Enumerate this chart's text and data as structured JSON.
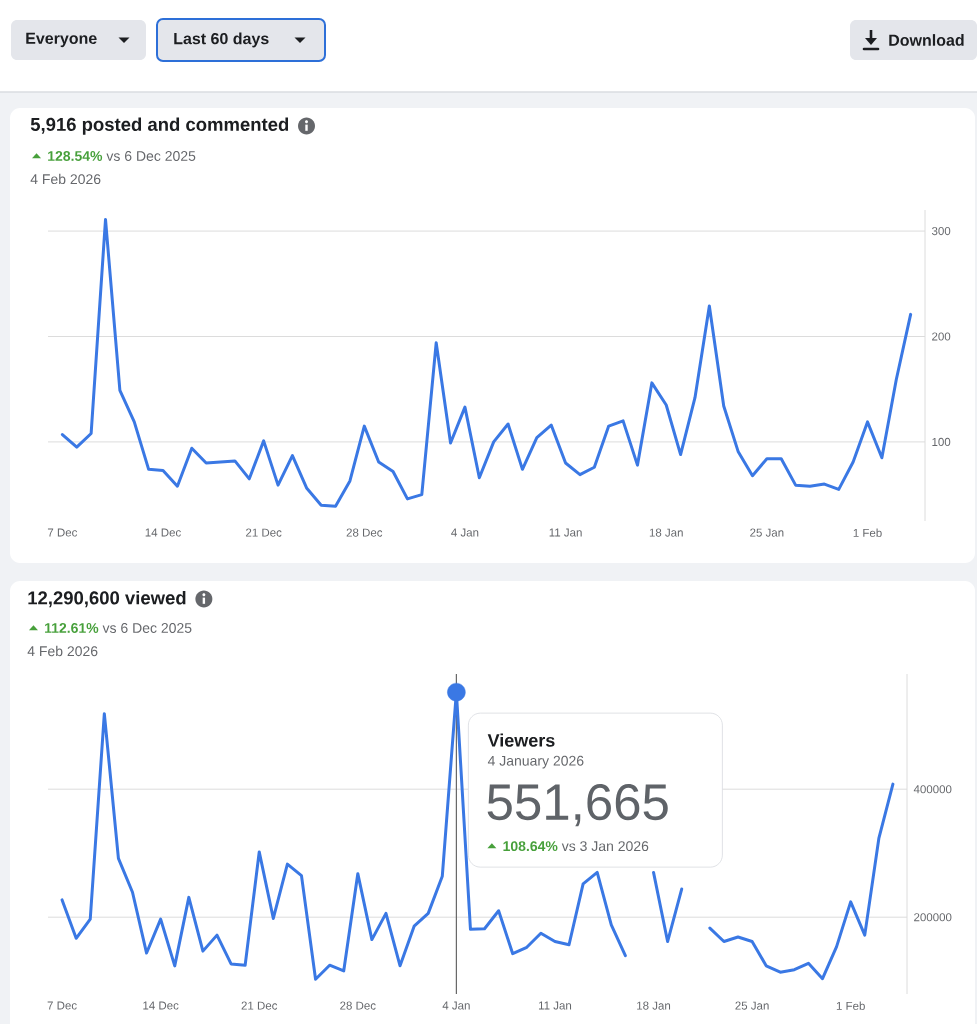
{
  "chart_data": [
    {
      "type": "other",
      "annotations": [
        "Everyone",
        "Last 60 days",
        "Download"
      ]
    },
    {
      "type": "line",
      "title": "5,916 posted and commented",
      "subtitle": "**128.54%** vs 6 Dec 2025",
      "annotations": [
        "4 Feb 2026"
      ],
      "x": [
        "2025-12-07",
        "2025-12-08",
        "2025-12-09",
        "2025-12-10",
        "2025-12-11",
        "2025-12-12",
        "2025-12-13",
        "2025-12-14",
        "2025-12-15",
        "2025-12-16",
        "2025-12-17",
        "2025-12-18",
        "2025-12-19",
        "2025-12-20",
        "2025-12-21",
        "2025-12-22",
        "2025-12-23",
        "2025-12-24",
        "2025-12-25",
        "2025-12-26",
        "2025-12-27",
        "2025-12-28",
        "2025-12-29",
        "2025-12-30",
        "2025-12-31",
        "2026-01-01",
        "2026-01-02",
        "2026-01-03",
        "2026-01-04",
        "2026-01-05",
        "2026-01-06",
        "2026-01-07",
        "2026-01-08",
        "2026-01-09",
        "2026-01-10",
        "2026-01-11",
        "2026-01-12",
        "2026-01-13",
        "2026-01-14",
        "2026-01-15",
        "2026-01-16",
        "2026-01-17",
        "2026-01-18",
        "2026-01-19",
        "2026-01-20",
        "2026-01-21",
        "2026-01-22",
        "2026-01-23",
        "2026-01-24",
        "2026-01-25",
        "2026-01-26",
        "2026-01-27",
        "2026-01-28",
        "2026-01-29",
        "2026-01-30",
        "2026-01-31",
        "2026-02-01",
        "2026-02-02",
        "2026-02-03",
        "2026-02-04"
      ],
      "series": [
        {
          "color": "#3a78e4",
          "values": [
            107,
            95,
            108,
            311,
            149,
            119,
            74,
            73,
            58,
            94,
            80,
            81,
            82,
            65,
            101,
            59,
            87,
            56,
            40,
            39,
            63,
            115,
            81,
            72,
            46,
            50,
            194,
            99,
            133,
            66,
            100,
            117,
            74,
            104,
            116,
            80,
            69,
            76,
            115,
            120,
            78,
            156,
            135,
            88,
            142,
            229,
            134,
            91,
            68,
            84,
            84,
            59,
            58,
            60,
            55,
            81,
            119,
            85,
            159,
            221
          ]
        }
      ],
      "xlim": [
        "2025-12-06",
        "2026-02-05"
      ],
      "xticks": [
        {
          "value": "2025-12-07",
          "label": "7 Dec"
        },
        {
          "value": "2025-12-14",
          "label": "14 Dec"
        },
        {
          "value": "2025-12-21",
          "label": "21 Dec"
        },
        {
          "value": "2025-12-28",
          "label": "28 Dec"
        },
        {
          "value": "2026-01-04",
          "label": "4 Jan"
        },
        {
          "value": "2026-01-11",
          "label": "11 Jan"
        },
        {
          "value": "2026-01-18",
          "label": "18 Jan"
        },
        {
          "value": "2026-01-25",
          "label": "25 Jan"
        },
        {
          "value": "2026-02-01",
          "label": "1 Feb"
        }
      ],
      "ylim": [
        25,
        320
      ],
      "yticks": [
        100,
        200,
        300
      ],
      "grid": "y",
      "line_style": "solid"
    },
    {
      "type": "line",
      "title": "12,290,600 viewed",
      "subtitle": "**112.61%** vs 6 Dec 2025",
      "annotations": [
        "4 Feb 2026",
        {
          "text": "Viewers",
          "x": "2026-01-04",
          "y": 551665
        },
        "4 January 2026",
        {
          "text": "551,665",
          "x": "2026-01-04",
          "y": 551665
        },
        "**108.64%** vs 3 Jan 2026"
      ],
      "x": [
        "2025-12-07",
        "2025-12-08",
        "2025-12-09",
        "2025-12-10",
        "2025-12-11",
        "2025-12-12",
        "2025-12-13",
        "2025-12-14",
        "2025-12-15",
        "2025-12-16",
        "2025-12-17",
        "2025-12-18",
        "2025-12-19",
        "2025-12-20",
        "2025-12-21",
        "2025-12-22",
        "2025-12-23",
        "2025-12-24",
        "2025-12-25",
        "2025-12-26",
        "2025-12-27",
        "2025-12-28",
        "2025-12-29",
        "2025-12-30",
        "2025-12-31",
        "2026-01-01",
        "2026-01-02",
        "2026-01-03",
        "2026-01-04",
        "2026-01-05",
        "2026-01-06",
        "2026-01-07",
        "2026-01-08",
        "2026-01-09",
        "2026-01-10",
        "2026-01-11",
        "2026-01-12",
        "2026-01-13",
        "2026-01-14",
        "2026-01-15",
        "2026-01-16",
        "2026-01-17",
        "2026-01-18",
        "2026-01-19",
        "2026-01-20",
        "2026-01-21",
        "2026-01-22",
        "2026-01-23",
        "2026-01-24",
        "2026-01-25",
        "2026-01-26",
        "2026-01-27",
        "2026-01-28",
        "2026-01-29",
        "2026-01-30",
        "2026-01-31",
        "2026-02-01",
        "2026-02-02",
        "2026-02-03",
        "2026-02-04"
      ],
      "series": [
        {
          "color": "#3a78e4",
          "values": [
            227000,
            167000,
            197000,
            518000,
            292000,
            239000,
            144000,
            197000,
            124000,
            231000,
            147000,
            172000,
            127000,
            125000,
            302000,
            198000,
            283000,
            265000,
            103000,
            125000,
            116000,
            268000,
            165000,
            206000,
            124000,
            186000,
            206000,
            264000,
            551665,
            181000,
            182000,
            210000,
            143000,
            153000,
            175000,
            162000,
            157000,
            252000,
            270000,
            188000,
            140000,
            null,
            270000,
            162000,
            244000,
            null,
            183000,
            162000,
            169000,
            162000,
            124000,
            114000,
            118000,
            128000,
            104000,
            154000,
            224000,
            172000,
            323000,
            408000
          ]
        },
        {
          "type": "scatter",
          "x": [
            "2026-01-04"
          ],
          "values": [
            551665
          ],
          "color": "#3a78e4"
        }
      ],
      "ref_lines": [
        {
          "axis": "x",
          "value": "2026-01-04",
          "color": "#666666"
        }
      ],
      "xlim": [
        "2025-12-06",
        "2026-02-05"
      ],
      "xticks": [
        {
          "value": "2025-12-07",
          "label": "7 Dec"
        },
        {
          "value": "2025-12-14",
          "label": "14 Dec"
        },
        {
          "value": "2025-12-21",
          "label": "21 Dec"
        },
        {
          "value": "2025-12-28",
          "label": "28 Dec"
        },
        {
          "value": "2026-01-04",
          "label": "4 Jan"
        },
        {
          "value": "2026-01-11",
          "label": "11 Jan"
        },
        {
          "value": "2026-01-18",
          "label": "18 Jan"
        },
        {
          "value": "2026-01-25",
          "label": "25 Jan"
        },
        {
          "value": "2026-02-01",
          "label": "1 Feb"
        }
      ],
      "ylim": [
        80000,
        580000
      ],
      "yticks": [
        200000,
        400000
      ],
      "grid": "y",
      "line_style": "solid"
    }
  ]
}
